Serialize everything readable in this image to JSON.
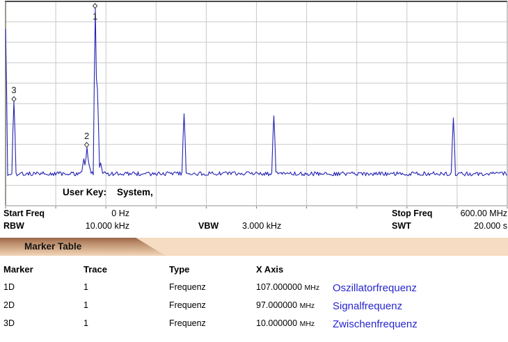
{
  "colors": {
    "trace": "#2222b2",
    "grid": "#c9c9c9",
    "border_top": "#4a4a4a",
    "border_left": "#6e6e60",
    "border_other": "#909090",
    "annotation_blue": "#2626cd",
    "marker_stroke": "#333333",
    "band_base": "#f6dcc3"
  },
  "chart_data": {
    "type": "line",
    "title": "",
    "x_axis": {
      "start_label": "0 Hz",
      "stop_label": "600.00 MHz",
      "start_mhz": 0,
      "stop_mhz": 600,
      "divisions": 10
    },
    "y_axis": {
      "divisions": 10,
      "tick_labels": "none (unlabeled amplitude graticule)"
    },
    "grid": "on",
    "noise_floor_div": 1.58,
    "peaks": [
      {
        "freq_mhz": 0.5,
        "height_div": 8.65
      },
      {
        "freq_mhz": 10,
        "height_div": 5.1
      },
      {
        "freq_mhz": 93.5,
        "height_div": 2.3
      },
      {
        "freq_mhz": 97,
        "height_div": 2.86
      },
      {
        "freq_mhz": 100,
        "height_div": 2.0
      },
      {
        "freq_mhz": 107,
        "height_div": 9.66
      },
      {
        "freq_mhz": 109.5,
        "height_div": 5.7
      },
      {
        "freq_mhz": 113,
        "height_div": 2.1
      },
      {
        "freq_mhz": 214,
        "height_div": 4.5
      },
      {
        "freq_mhz": 321,
        "height_div": 4.4
      },
      {
        "freq_mhz": 535,
        "height_div": 4.3
      }
    ],
    "markers": [
      {
        "label": "1",
        "freq_mhz": 107,
        "label_position": "below"
      },
      {
        "label": "2",
        "freq_mhz": 97,
        "label_position": "above"
      },
      {
        "label": "3",
        "freq_mhz": 10,
        "label_position": "above"
      }
    ]
  },
  "plot": {
    "user_key_label": "User Key:",
    "user_key_value": "System,"
  },
  "footer": {
    "start_freq_label": "Start Freq",
    "start_freq_value": "0 Hz",
    "stop_freq_label": "Stop Freq",
    "stop_freq_value": "600.00 MHz",
    "rbw_label": "RBW",
    "rbw_value": "10.000 kHz",
    "vbw_label": "VBW",
    "vbw_value": "3.000 kHz",
    "swt_label": "SWT",
    "swt_value": "20.000 s"
  },
  "marker_table": {
    "title": "Marker Table",
    "columns": [
      "Marker",
      "Trace",
      "Type",
      "X Axis"
    ],
    "rows": [
      {
        "marker": "1D",
        "trace": "1",
        "type": "Frequenz",
        "x_value": "107.000000",
        "x_unit": "MHz",
        "annotation": "Oszillatorfrequenz"
      },
      {
        "marker": "2D",
        "trace": "1",
        "type": "Frequenz",
        "x_value": "97.000000",
        "x_unit": "MHz",
        "annotation": "Signalfrequenz"
      },
      {
        "marker": "3D",
        "trace": "1",
        "type": "Frequenz",
        "x_value": "10.000000",
        "x_unit": "MHz",
        "annotation": "Zwischenfrequenz"
      }
    ]
  }
}
